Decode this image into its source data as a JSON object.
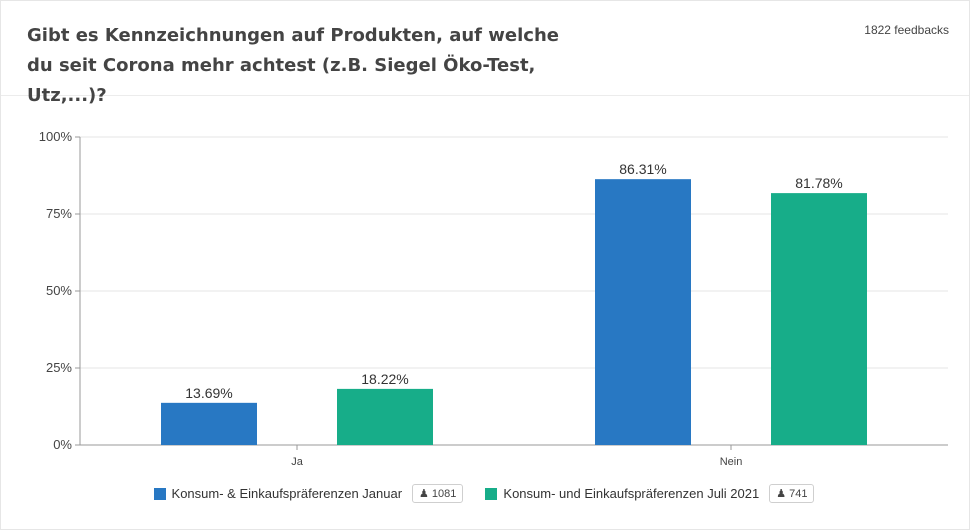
{
  "header": {
    "title": "Gibt es Kennzeichnungen auf Produkten, auf welche du seit Corona mehr achtest (z.B. Siegel Öko-Test, Utz,...)?",
    "feedback_count": "1822 feedbacks"
  },
  "chart_data": {
    "type": "bar",
    "categories": [
      "Ja",
      "Nein"
    ],
    "series": [
      {
        "name": "Konsum- & Einkaufspräferenzen Januar",
        "values": [
          13.69,
          86.31
        ],
        "labels": [
          "13.69%",
          "86.31%"
        ],
        "color": "#2878c3",
        "respondents": "1081"
      },
      {
        "name": "Konsum- und Einkaufspräferenzen Juli 2021",
        "values": [
          18.22,
          81.78
        ],
        "labels": [
          "18.22%",
          "81.78%"
        ],
        "color": "#17ad89",
        "respondents": "741"
      }
    ],
    "ylim": [
      0,
      100
    ],
    "y_ticks": [
      {
        "value": 0,
        "label": "0%"
      },
      {
        "value": 25,
        "label": "25%"
      },
      {
        "value": 50,
        "label": "50%"
      },
      {
        "value": 75,
        "label": "75%"
      },
      {
        "value": 100,
        "label": "100%"
      }
    ],
    "grid": true,
    "legend_position": "bottom",
    "respondent_icon": "person-icon"
  }
}
